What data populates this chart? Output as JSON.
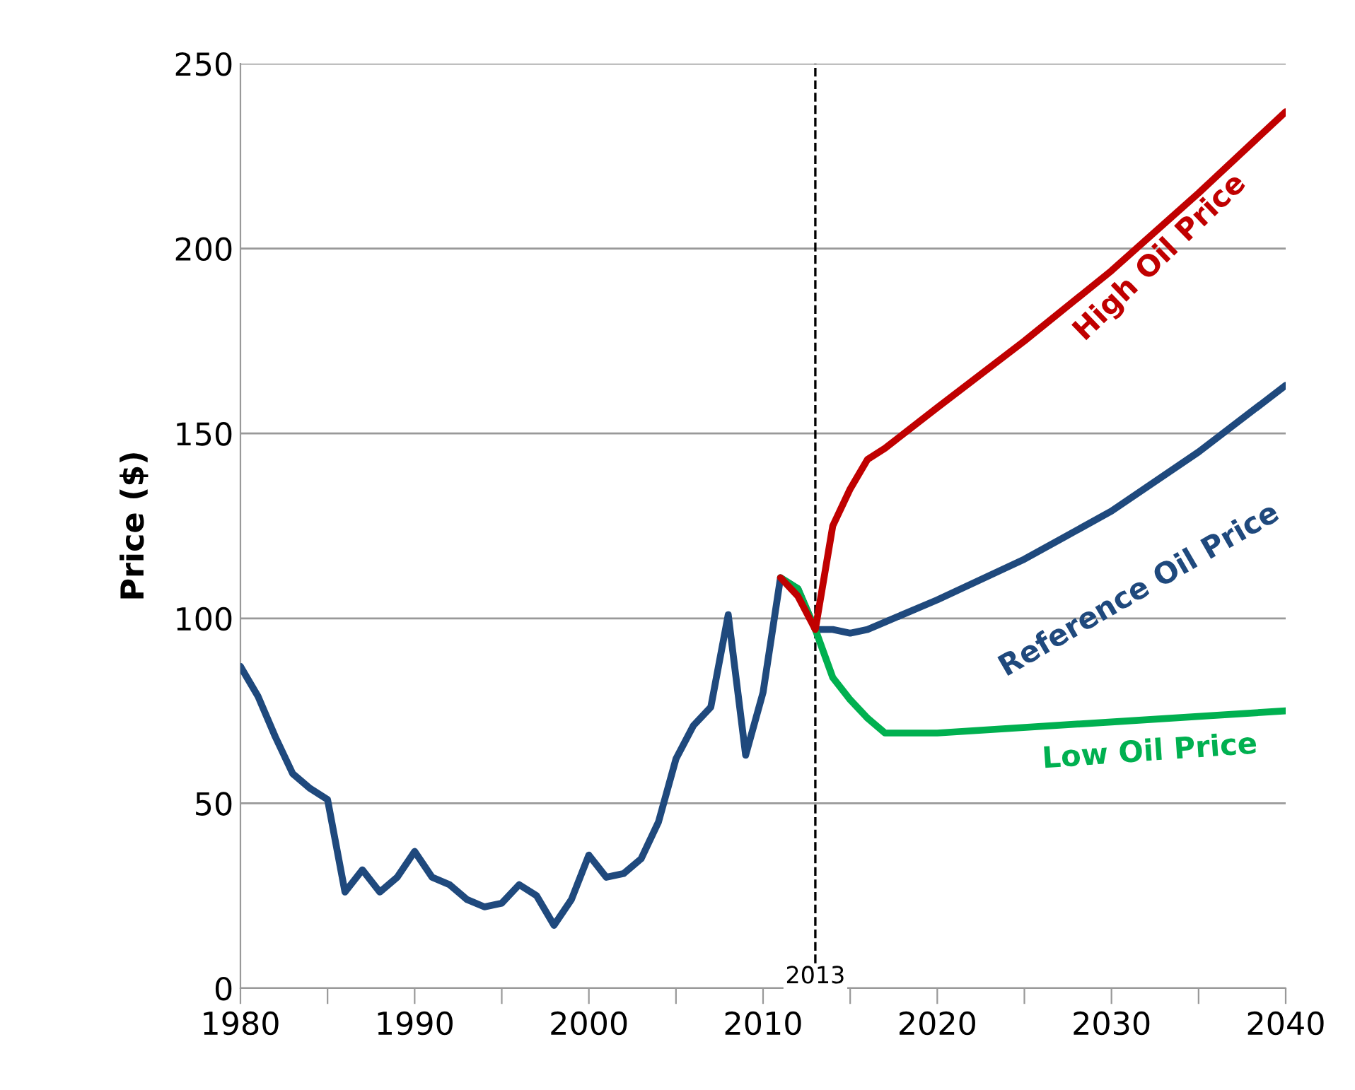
{
  "chart_data": {
    "type": "line",
    "ylabel": "Price ($)",
    "series": [
      {
        "name": "High Oil Price",
        "color": "#c00000",
        "x": [
          2011,
          2012,
          2013,
          2014,
          2015,
          2016,
          2017,
          2020,
          2025,
          2030,
          2035,
          2040
        ],
        "values": [
          111,
          106,
          97,
          125,
          135,
          143,
          146,
          157,
          175,
          194,
          215,
          237
        ]
      },
      {
        "name": "Low Oil Price",
        "color": "#00b050",
        "x": [
          2011,
          2012,
          2013,
          2014,
          2015,
          2016,
          2017,
          2020,
          2030,
          2040
        ],
        "values": [
          111,
          108,
          97,
          84,
          78,
          73,
          69,
          69,
          72,
          75
        ]
      },
      {
        "name": "Reference Oil Price",
        "color": "#1f497d",
        "x": [
          1980,
          1981,
          1982,
          1983,
          1984,
          1985,
          1986,
          1987,
          1988,
          1989,
          1990,
          1991,
          1992,
          1993,
          1994,
          1995,
          1996,
          1997,
          1998,
          1999,
          2000,
          2001,
          2002,
          2003,
          2004,
          2005,
          2006,
          2007,
          2008,
          2009,
          2010,
          2011,
          2012,
          2013,
          2014,
          2015,
          2016,
          2017,
          2020,
          2025,
          2030,
          2035,
          2040
        ],
        "values": [
          87,
          79,
          68,
          58,
          54,
          51,
          26,
          32,
          26,
          30,
          37,
          30,
          28,
          24,
          22,
          23,
          28,
          25,
          17,
          24,
          36,
          30,
          31,
          35,
          45,
          62,
          71,
          76,
          101,
          63,
          80,
          111,
          108,
          97,
          97,
          96,
          97,
          99,
          105,
          116,
          129,
          145,
          163
        ]
      }
    ],
    "xlim": [
      1980,
      2040
    ],
    "ylim": [
      0,
      250
    ],
    "xticks": [
      1980,
      {
        "value": 1985,
        "label": null
      },
      1990,
      {
        "value": 1995,
        "label": null
      },
      2000,
      {
        "value": 2005,
        "label": null
      },
      2010,
      {
        "value": 2015,
        "label": null
      },
      2020,
      {
        "value": 2025,
        "label": null
      },
      2030,
      {
        "value": 2035,
        "label": null
      },
      2040
    ],
    "yticks": [
      0,
      50,
      100,
      150,
      200,
      250
    ],
    "ref_lines": [
      {
        "axis": "x",
        "value": 2013,
        "label": "2013",
        "color": "#000000",
        "line_style": "dashed"
      }
    ],
    "grid": "y",
    "legend": false,
    "marker": "none",
    "line_style": "solid"
  }
}
